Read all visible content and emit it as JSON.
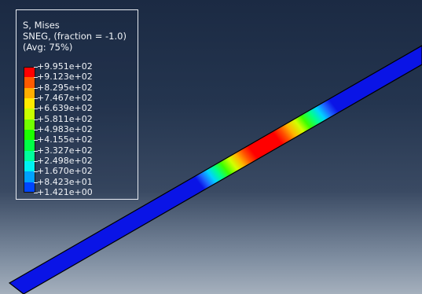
{
  "legend": {
    "title_line1": "S, Mises",
    "title_line2": "SNEG, (fraction = -1.0)",
    "title_line3": "(Avg: 75%)",
    "bands": [
      {
        "color": "#ff0000"
      },
      {
        "color": "#ff5a00"
      },
      {
        "color": "#ffae00"
      },
      {
        "color": "#ffeb00"
      },
      {
        "color": "#c8ff00"
      },
      {
        "color": "#72ff00"
      },
      {
        "color": "#1cff00"
      },
      {
        "color": "#00ff46"
      },
      {
        "color": "#00ff9c"
      },
      {
        "color": "#00f2f2"
      },
      {
        "color": "#00a2ff"
      },
      {
        "color": "#0046ff"
      }
    ],
    "ticks": [
      "+9.951e+02",
      "+9.123e+02",
      "+8.295e+02",
      "+7.467e+02",
      "+6.639e+02",
      "+5.811e+02",
      "+4.983e+02",
      "+4.155e+02",
      "+3.327e+02",
      "+2.498e+02",
      "+1.670e+02",
      "+8.423e+01",
      "+1.421e+00"
    ]
  },
  "model": {
    "base_color": "#0a14e6",
    "edge_color": "#000000"
  }
}
